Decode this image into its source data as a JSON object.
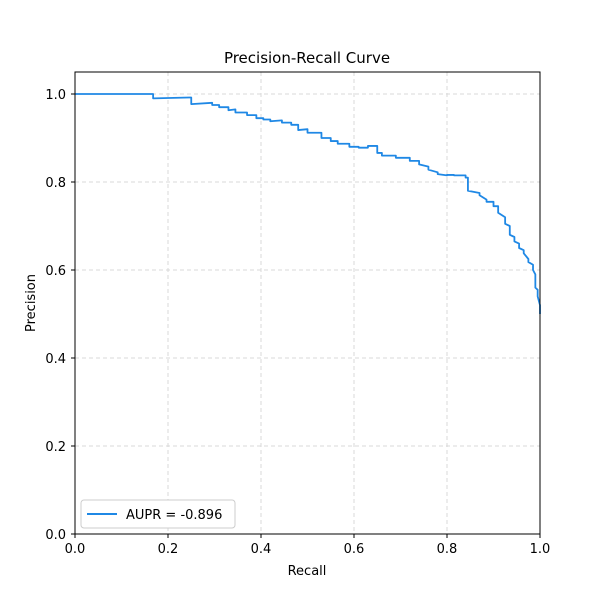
{
  "chart_data": {
    "type": "line",
    "title": "Precision-Recall Curve",
    "xlabel": "Recall",
    "ylabel": "Precision",
    "xlim": [
      0.0,
      1.0
    ],
    "ylim": [
      0.0,
      1.05
    ],
    "xticks": [
      "0.0",
      "0.2",
      "0.4",
      "0.6",
      "0.8",
      "1.0"
    ],
    "yticks": [
      "0.0",
      "0.2",
      "0.4",
      "0.6",
      "0.8",
      "1.0"
    ],
    "grid": true,
    "legend_position": "lower-left",
    "series": [
      {
        "name": "AUPR = -0.896",
        "color": "#1f88e5",
        "x": [
          0.0,
          0.168,
          0.168,
          0.245,
          0.25,
          0.25,
          0.295,
          0.295,
          0.31,
          0.31,
          0.33,
          0.33,
          0.345,
          0.345,
          0.37,
          0.37,
          0.39,
          0.39,
          0.405,
          0.405,
          0.42,
          0.42,
          0.445,
          0.445,
          0.465,
          0.465,
          0.48,
          0.48,
          0.5,
          0.5,
          0.53,
          0.53,
          0.55,
          0.55,
          0.565,
          0.565,
          0.59,
          0.59,
          0.61,
          0.61,
          0.63,
          0.63,
          0.65,
          0.65,
          0.66,
          0.66,
          0.69,
          0.69,
          0.72,
          0.72,
          0.74,
          0.74,
          0.76,
          0.76,
          0.78,
          0.78,
          0.8,
          0.8,
          0.815,
          0.815,
          0.84,
          0.84,
          0.845,
          0.845,
          0.87,
          0.87,
          0.885,
          0.885,
          0.9,
          0.9,
          0.91,
          0.91,
          0.925,
          0.925,
          0.935,
          0.935,
          0.945,
          0.945,
          0.955,
          0.955,
          0.965,
          0.965,
          0.975,
          0.975,
          0.985,
          0.985,
          0.99,
          0.99,
          0.995,
          0.995,
          1.0,
          1.0
        ],
        "y": [
          1.0,
          1.0,
          0.99,
          0.992,
          0.992,
          0.977,
          0.98,
          0.975,
          0.975,
          0.97,
          0.97,
          0.963,
          0.965,
          0.958,
          0.958,
          0.952,
          0.952,
          0.945,
          0.945,
          0.942,
          0.942,
          0.938,
          0.94,
          0.935,
          0.935,
          0.93,
          0.93,
          0.918,
          0.92,
          0.912,
          0.912,
          0.9,
          0.9,
          0.893,
          0.893,
          0.887,
          0.887,
          0.88,
          0.88,
          0.878,
          0.878,
          0.882,
          0.882,
          0.866,
          0.866,
          0.86,
          0.86,
          0.855,
          0.855,
          0.848,
          0.848,
          0.84,
          0.835,
          0.828,
          0.822,
          0.818,
          0.815,
          0.816,
          0.816,
          0.815,
          0.815,
          0.81,
          0.81,
          0.78,
          0.775,
          0.77,
          0.76,
          0.755,
          0.755,
          0.745,
          0.745,
          0.73,
          0.72,
          0.705,
          0.7,
          0.68,
          0.675,
          0.665,
          0.66,
          0.65,
          0.645,
          0.638,
          0.625,
          0.618,
          0.612,
          0.6,
          0.59,
          0.56,
          0.555,
          0.54,
          0.52,
          0.5
        ]
      }
    ]
  }
}
